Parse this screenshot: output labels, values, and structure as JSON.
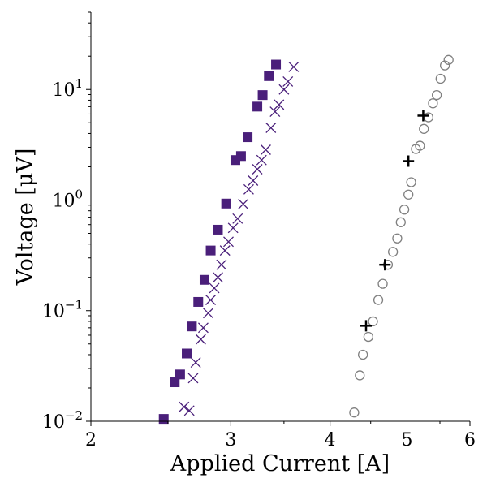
{
  "chart_data": {
    "type": "scatter",
    "title": "",
    "xlabel": "Applied Current [A]",
    "ylabel": "Voltage [μV]",
    "xscale": "log",
    "yscale": "log",
    "xlim": [
      2,
      6
    ],
    "ylim": [
      0.01,
      50
    ],
    "grid": false,
    "legend": "none",
    "x_ticks": [
      {
        "value": 2,
        "label": "2"
      },
      {
        "value": 3,
        "label": "3"
      },
      {
        "value": 4,
        "label": "4"
      },
      {
        "value": 5,
        "label": "5"
      },
      {
        "value": 6,
        "label": "6"
      }
    ],
    "y_ticks": [
      {
        "value": 0.01,
        "base": "10",
        "exp": "−2"
      },
      {
        "value": 0.1,
        "base": "10",
        "exp": "−1"
      },
      {
        "value": 1,
        "base": "10",
        "exp": "0"
      },
      {
        "value": 10,
        "base": "10",
        "exp": "1"
      }
    ],
    "series": [
      {
        "marker": "square",
        "color": "#4a1f7a",
        "points": [
          [
            2.47,
            0.0105
          ],
          [
            2.55,
            0.0225
          ],
          [
            2.59,
            0.0265
          ],
          [
            2.64,
            0.041
          ],
          [
            2.68,
            0.072
          ],
          [
            2.73,
            0.12
          ],
          [
            2.78,
            0.19
          ],
          [
            2.83,
            0.35
          ],
          [
            2.89,
            0.54
          ],
          [
            2.96,
            0.93
          ],
          [
            3.04,
            2.3
          ],
          [
            3.09,
            2.5
          ],
          [
            3.15,
            3.7
          ],
          [
            3.24,
            7.0
          ],
          [
            3.29,
            8.9
          ],
          [
            3.35,
            13.2
          ],
          [
            3.42,
            16.8
          ]
        ]
      },
      {
        "marker": "x",
        "color": "#4a1f7a",
        "points": [
          [
            2.62,
            0.0135
          ],
          [
            2.66,
            0.0125
          ],
          [
            2.69,
            0.0245
          ],
          [
            2.71,
            0.034
          ],
          [
            2.75,
            0.055
          ],
          [
            2.77,
            0.07
          ],
          [
            2.81,
            0.095
          ],
          [
            2.83,
            0.125
          ],
          [
            2.86,
            0.16
          ],
          [
            2.89,
            0.2
          ],
          [
            2.92,
            0.26
          ],
          [
            2.95,
            0.35
          ],
          [
            2.98,
            0.42
          ],
          [
            3.02,
            0.56
          ],
          [
            3.06,
            0.68
          ],
          [
            3.11,
            0.92
          ],
          [
            3.16,
            1.25
          ],
          [
            3.2,
            1.5
          ],
          [
            3.24,
            1.9
          ],
          [
            3.28,
            2.3
          ],
          [
            3.32,
            2.85
          ],
          [
            3.37,
            4.5
          ],
          [
            3.41,
            6.3
          ],
          [
            3.45,
            7.3
          ],
          [
            3.5,
            10.0
          ],
          [
            3.54,
            11.8
          ],
          [
            3.6,
            16.0
          ]
        ]
      },
      {
        "marker": "circle-open",
        "color": "#808080",
        "points": [
          [
            4.29,
            0.012
          ],
          [
            4.36,
            0.026
          ],
          [
            4.4,
            0.04
          ],
          [
            4.47,
            0.058
          ],
          [
            4.53,
            0.08
          ],
          [
            4.6,
            0.125
          ],
          [
            4.66,
            0.175
          ],
          [
            4.73,
            0.26
          ],
          [
            4.8,
            0.34
          ],
          [
            4.86,
            0.45
          ],
          [
            4.91,
            0.63
          ],
          [
            4.96,
            0.82
          ],
          [
            5.02,
            1.12
          ],
          [
            5.06,
            1.45
          ],
          [
            5.13,
            2.9
          ],
          [
            5.19,
            3.1
          ],
          [
            5.25,
            4.4
          ],
          [
            5.32,
            5.6
          ],
          [
            5.39,
            7.5
          ],
          [
            5.45,
            8.9
          ],
          [
            5.51,
            12.5
          ],
          [
            5.58,
            16.5
          ],
          [
            5.64,
            18.5
          ]
        ]
      },
      {
        "marker": "plus",
        "color": "#000000",
        "points": [
          [
            4.44,
            0.073
          ],
          [
            4.69,
            0.26
          ],
          [
            5.02,
            2.25
          ],
          [
            5.24,
            5.8
          ]
        ]
      }
    ]
  }
}
